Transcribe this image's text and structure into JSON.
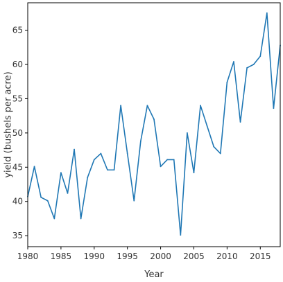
{
  "chart_data": {
    "type": "line",
    "title": "",
    "xlabel": "Year",
    "ylabel": "yield (bushels per acre)",
    "xlim": [
      1980,
      2018
    ],
    "ylim": [
      33.4,
      69
    ],
    "x_ticks": [
      1980,
      1985,
      1990,
      1995,
      2000,
      2005,
      2010,
      2015
    ],
    "y_ticks": [
      35,
      40,
      45,
      50,
      55,
      60,
      65
    ],
    "grid": false,
    "legend": "none",
    "line_color": "#1f77b4",
    "series": [
      {
        "x": [
          1980,
          1981,
          1982,
          1983,
          1984,
          1985,
          1986,
          1987,
          1988,
          1989,
          1990,
          1991,
          1992,
          1993,
          1994,
          1995,
          1996,
          1997,
          1998,
          1999,
          2000,
          2001,
          2002,
          2003,
          2004,
          2005,
          2006,
          2007,
          2008,
          2009,
          2010,
          2011,
          2012,
          2013,
          2014,
          2015,
          2016,
          2017,
          2018
        ],
        "values": [
          40.7,
          45.1,
          40.6,
          40.1,
          37.5,
          44.2,
          41.2,
          47.6,
          37.5,
          43.5,
          46.1,
          47.0,
          44.6,
          44.6,
          54.0,
          47.0,
          40.1,
          48.8,
          54.0,
          52.0,
          45.1,
          46.1,
          46.1,
          35.1,
          50.0,
          44.2,
          54.0,
          51.0,
          48.0,
          47.0,
          57.4,
          60.4,
          51.6,
          59.5,
          60.0,
          61.2,
          67.5,
          53.6,
          62.8
        ]
      }
    ]
  }
}
